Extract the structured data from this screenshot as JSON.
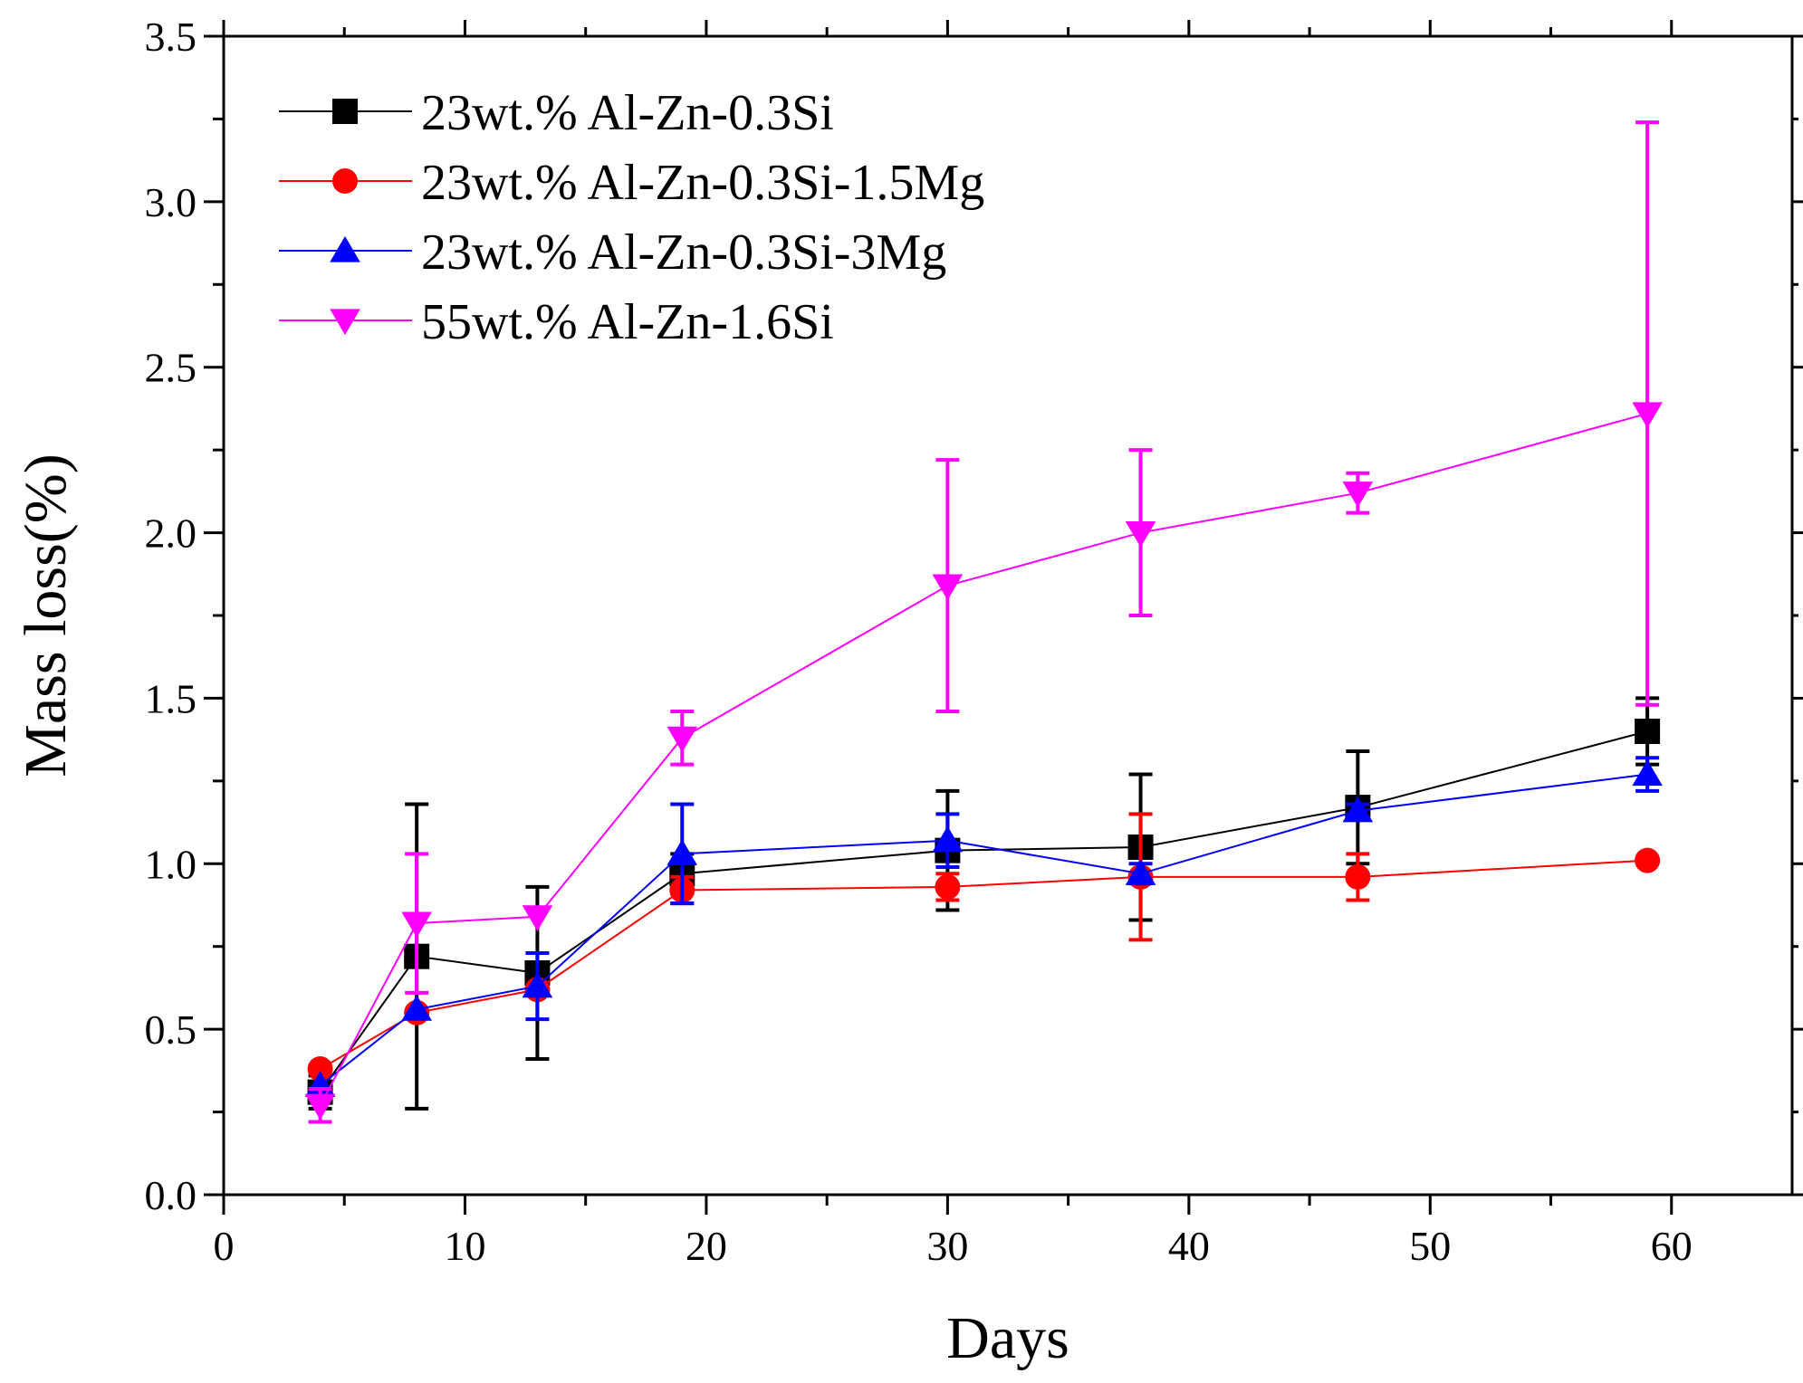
{
  "chart_data": {
    "type": "line",
    "title": "",
    "xlabel": "Days",
    "ylabel": "Mass loss(%)",
    "xlim": [
      0,
      65
    ],
    "ylim": [
      0,
      3.5
    ],
    "x_ticks": [
      0,
      10,
      20,
      30,
      40,
      50,
      60
    ],
    "x_tick_labels": [
      "0",
      "10",
      "20",
      "30",
      "40",
      "50",
      "60"
    ],
    "y_ticks": [
      0,
      0.5,
      1.0,
      1.5,
      2.0,
      2.5,
      3.0,
      3.5
    ],
    "y_tick_labels": [
      "0.0",
      "0.5",
      "1.0",
      "1.5",
      "2.0",
      "2.5",
      "3.0",
      "3.5"
    ],
    "grid": false,
    "legend_position": "top-left",
    "x": [
      4,
      8,
      13,
      19,
      30,
      38,
      47,
      59
    ],
    "series": [
      {
        "name": "23wt.% Al-Zn-0.3Si",
        "color": "#000000",
        "marker": "square",
        "values": [
          0.31,
          0.72,
          0.67,
          0.97,
          1.04,
          1.05,
          1.17,
          1.4
        ],
        "errors": [
          0.05,
          0.46,
          0.26,
          0.06,
          0.18,
          0.22,
          0.17,
          0.1
        ]
      },
      {
        "name": "23wt.% Al-Zn-0.3Si-1.5Mg",
        "color": "#ff0000",
        "marker": "circle",
        "values": [
          0.38,
          0.55,
          0.62,
          0.92,
          0.93,
          0.96,
          0.96,
          1.01
        ],
        "errors": [
          0.0,
          0.0,
          0.0,
          0.04,
          0.04,
          0.19,
          0.07,
          0.0
        ]
      },
      {
        "name": "23wt.% Al-Zn-0.3Si-3Mg",
        "color": "#0000ff",
        "marker": "triangle-up",
        "values": [
          0.33,
          0.56,
          0.63,
          1.03,
          1.07,
          0.97,
          1.16,
          1.27
        ],
        "errors": [
          0.0,
          0.0,
          0.1,
          0.15,
          0.08,
          0.03,
          0.02,
          0.05
        ]
      },
      {
        "name": "55wt.% Al-Zn-1.6Si",
        "color": "#ff00ff",
        "marker": "triangle-down",
        "values": [
          0.27,
          0.82,
          0.84,
          1.38,
          1.84,
          2.0,
          2.12,
          2.36
        ],
        "errors": [
          0.05,
          0.21,
          0.0,
          0.08,
          0.38,
          0.25,
          0.06,
          0.88
        ]
      }
    ]
  }
}
